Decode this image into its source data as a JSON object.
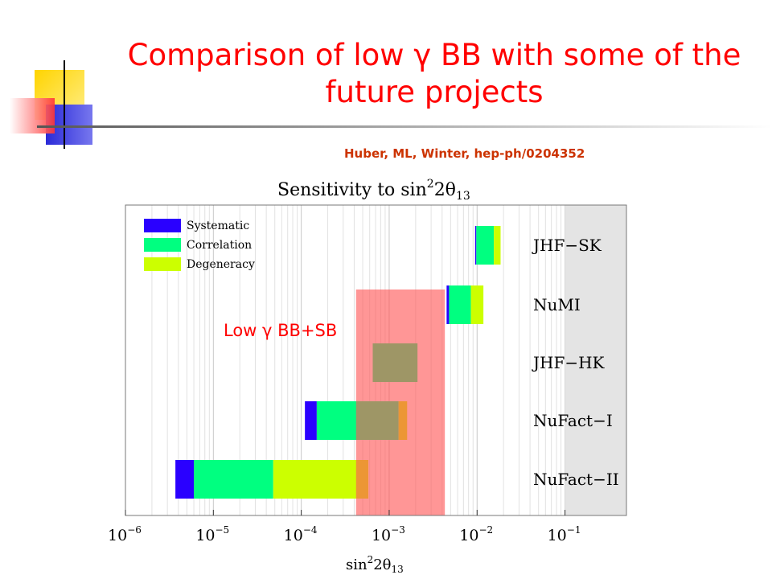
{
  "slide": {
    "title_line1": "Comparison of low γ BB with some  of the",
    "title_line2": "future projects",
    "citation": "Huber, ML, Winter, hep-ph/0204352"
  },
  "colors": {
    "title": "#ff0000",
    "citation": "#cc3300",
    "systematic": "#2a00ff",
    "correlation": "#00ff80",
    "degeneracy": "#ccff00",
    "overlay": "#ff5555",
    "deco_yellow": "#ffcc00",
    "deco_blue": "#3333cc",
    "deco_red": "#ff3333"
  },
  "chart_data": {
    "type": "bar",
    "orientation": "horizontal",
    "title": "Sensitivity to sin²2θ₁₃",
    "title_main": "Sensitivity to sin",
    "title_sup": "2",
    "title_rest": "2θ",
    "title_sub": "13",
    "xlabel_main": "sin",
    "xlabel_sup": "2",
    "xlabel_rest": "2θ",
    "xlabel_sub": "13",
    "xscale": "log",
    "xlim": [
      1e-06,
      0.5
    ],
    "x_ticks": [
      {
        "value": 1e-06,
        "base": "10",
        "exp": "−6"
      },
      {
        "value": 1e-05,
        "base": "10",
        "exp": "−5"
      },
      {
        "value": 0.0001,
        "base": "10",
        "exp": "−4"
      },
      {
        "value": 0.001,
        "base": "10",
        "exp": "−3"
      },
      {
        "value": 0.01,
        "base": "10",
        "exp": "−2"
      },
      {
        "value": 0.1,
        "base": "10",
        "exp": "−1"
      }
    ],
    "grid": true,
    "legend_position": "top-left",
    "legend": [
      "Systematic",
      "Correlation",
      "Degeneracy"
    ],
    "excluded_region": {
      "from": 0.1,
      "to": 0.5
    },
    "categories": [
      "JHF−SK",
      "NuMI",
      "JHF−HK",
      "NuFact−I",
      "NuFact−II"
    ],
    "series": [
      {
        "name": "Systematic",
        "ranges": [
          [
            0.0095,
            0.0098
          ],
          [
            0.0045,
            0.0048
          ],
          [
            0.00065,
            0.00065
          ],
          [
            0.00011,
            0.00015
          ],
          [
            3.7e-06,
            6e-06
          ]
        ]
      },
      {
        "name": "Correlation",
        "ranges": [
          [
            0.0098,
            0.0155
          ],
          [
            0.0048,
            0.0085
          ],
          [
            0.00065,
            0.0021
          ],
          [
            0.00015,
            0.00128
          ],
          [
            6e-06,
            4.8e-05
          ]
        ]
      },
      {
        "name": "Degeneracy",
        "ranges": [
          [
            0.0155,
            0.0185
          ],
          [
            0.0085,
            0.0118
          ],
          [
            0.0021,
            0.0021
          ],
          [
            0.00128,
            0.0016
          ],
          [
            4.8e-05,
            0.00058
          ]
        ]
      }
    ],
    "overlay": {
      "label": "Low γ BB+SB",
      "from": 0.00042,
      "to": 0.0043
    }
  }
}
